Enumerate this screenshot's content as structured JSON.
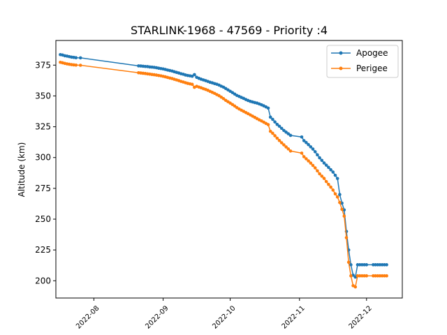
{
  "chart_data": {
    "type": "line",
    "title": "STARLINK-1968 - 47569 - Priority :4",
    "xlabel": "",
    "ylabel": "Altitude (km)",
    "xlim": [
      "2022-07-15",
      "2022-12-17"
    ],
    "ylim": [
      186,
      395
    ],
    "x_ticks": [
      "2022-08",
      "2022-09",
      "2022-10",
      "2022-11",
      "2022-12"
    ],
    "x_tick_dates": [
      "2022-08-01",
      "2022-09-01",
      "2022-10-01",
      "2022-11-01",
      "2022-12-01"
    ],
    "y_ticks": [
      200,
      225,
      250,
      275,
      300,
      325,
      350,
      375
    ],
    "legend_position": "upper right",
    "grid": false,
    "series": [
      {
        "name": "Apogee",
        "color": "#1f77b4",
        "marker": "circle",
        "x": [
          "2022-07-17",
          "2022-07-18",
          "2022-07-19",
          "2022-07-20",
          "2022-07-21",
          "2022-07-22",
          "2022-07-23",
          "2022-07-24",
          "2022-07-26",
          "2022-08-21",
          "2022-08-22",
          "2022-08-23",
          "2022-08-24",
          "2022-08-25",
          "2022-08-26",
          "2022-08-27",
          "2022-08-28",
          "2022-08-29",
          "2022-08-30",
          "2022-08-31",
          "2022-09-01",
          "2022-09-02",
          "2022-09-03",
          "2022-09-04",
          "2022-09-05",
          "2022-09-06",
          "2022-09-07",
          "2022-09-08",
          "2022-09-09",
          "2022-09-10",
          "2022-09-11",
          "2022-09-12",
          "2022-09-13",
          "2022-09-14",
          "2022-09-15",
          "2022-09-16",
          "2022-09-17",
          "2022-09-18",
          "2022-09-19",
          "2022-09-20",
          "2022-09-21",
          "2022-09-22",
          "2022-09-23",
          "2022-09-24",
          "2022-09-25",
          "2022-09-26",
          "2022-09-27",
          "2022-09-28",
          "2022-09-29",
          "2022-09-30",
          "2022-10-01",
          "2022-10-02",
          "2022-10-03",
          "2022-10-04",
          "2022-10-05",
          "2022-10-06",
          "2022-10-07",
          "2022-10-08",
          "2022-10-09",
          "2022-10-10",
          "2022-10-11",
          "2022-10-12",
          "2022-10-13",
          "2022-10-14",
          "2022-10-15",
          "2022-10-16",
          "2022-10-17",
          "2022-10-18",
          "2022-10-19",
          "2022-10-20",
          "2022-10-21",
          "2022-10-22",
          "2022-10-23",
          "2022-10-24",
          "2022-10-25",
          "2022-10-26",
          "2022-10-27",
          "2022-10-28",
          "2022-11-02",
          "2022-11-03",
          "2022-11-04",
          "2022-11-05",
          "2022-11-06",
          "2022-11-07",
          "2022-11-08",
          "2022-11-09",
          "2022-11-10",
          "2022-11-11",
          "2022-11-12",
          "2022-11-13",
          "2022-11-14",
          "2022-11-15",
          "2022-11-16",
          "2022-11-17",
          "2022-11-18",
          "2022-11-19",
          "2022-11-20",
          "2022-11-21",
          "2022-11-22",
          "2022-11-23",
          "2022-11-24",
          "2022-11-25",
          "2022-11-26",
          "2022-11-27",
          "2022-11-28",
          "2022-11-29",
          "2022-11-30",
          "2022-12-01",
          "2022-12-04",
          "2022-12-05",
          "2022-12-06",
          "2022-12-07",
          "2022-12-08",
          "2022-12-09",
          "2022-12-10",
          "2022-12-10"
        ],
        "y": [
          383.5,
          383.2,
          382.6,
          382.3,
          381.9,
          381.5,
          381.3,
          381.0,
          380.9,
          374.4,
          374.3,
          374.1,
          373.9,
          373.8,
          373.5,
          373.4,
          373.2,
          372.9,
          372.5,
          372.2,
          371.9,
          371.5,
          371.0,
          370.6,
          370.2,
          369.6,
          369.1,
          368.6,
          368.0,
          367.6,
          367.0,
          366.6,
          366.3,
          366.0,
          367.3,
          365.1,
          364.3,
          363.6,
          363.0,
          362.4,
          361.8,
          361.1,
          360.6,
          360.0,
          359.5,
          358.8,
          357.9,
          357.1,
          356.0,
          354.9,
          353.8,
          352.7,
          351.5,
          350.4,
          349.6,
          348.8,
          348.0,
          347.1,
          346.3,
          345.6,
          345.1,
          344.6,
          344.2,
          343.5,
          342.8,
          342.0,
          341.1,
          340.1,
          332.8,
          331.0,
          328.9,
          326.9,
          325.4,
          323.7,
          322.0,
          320.6,
          319.3,
          318.0,
          316.7,
          313.7,
          312.2,
          310.5,
          308.7,
          306.9,
          304.7,
          302.2,
          299.8,
          297.7,
          295.6,
          293.8,
          292.0,
          290.1,
          288.2,
          285.6,
          283.0,
          270.0,
          263.0,
          257.5,
          240.0,
          225.0,
          213.0,
          204.5,
          203.0,
          213.0,
          213.0,
          213.0,
          213.0,
          213.0,
          213.0,
          213.0,
          213.0,
          213.0,
          213.0,
          213.0,
          213.0,
          213.0
        ]
      },
      {
        "name": "Perigee",
        "color": "#ff7f0e",
        "marker": "circle",
        "x": [
          "2022-07-17",
          "2022-07-18",
          "2022-07-19",
          "2022-07-20",
          "2022-07-21",
          "2022-07-22",
          "2022-07-23",
          "2022-07-24",
          "2022-07-26",
          "2022-08-21",
          "2022-08-22",
          "2022-08-23",
          "2022-08-24",
          "2022-08-25",
          "2022-08-26",
          "2022-08-27",
          "2022-08-28",
          "2022-08-29",
          "2022-08-30",
          "2022-08-31",
          "2022-09-01",
          "2022-09-02",
          "2022-09-03",
          "2022-09-04",
          "2022-09-05",
          "2022-09-06",
          "2022-09-07",
          "2022-09-08",
          "2022-09-09",
          "2022-09-10",
          "2022-09-11",
          "2022-09-12",
          "2022-09-13",
          "2022-09-14",
          "2022-09-15",
          "2022-09-16",
          "2022-09-17",
          "2022-09-18",
          "2022-09-19",
          "2022-09-20",
          "2022-09-21",
          "2022-09-22",
          "2022-09-23",
          "2022-09-24",
          "2022-09-25",
          "2022-09-26",
          "2022-09-27",
          "2022-09-28",
          "2022-09-29",
          "2022-09-30",
          "2022-10-01",
          "2022-10-02",
          "2022-10-03",
          "2022-10-04",
          "2022-10-05",
          "2022-10-06",
          "2022-10-07",
          "2022-10-08",
          "2022-10-09",
          "2022-10-10",
          "2022-10-11",
          "2022-10-12",
          "2022-10-13",
          "2022-10-14",
          "2022-10-15",
          "2022-10-16",
          "2022-10-17",
          "2022-10-18",
          "2022-10-19",
          "2022-10-20",
          "2022-10-21",
          "2022-10-22",
          "2022-10-23",
          "2022-10-24",
          "2022-10-25",
          "2022-10-26",
          "2022-10-27",
          "2022-10-28",
          "2022-11-02",
          "2022-11-03",
          "2022-11-04",
          "2022-11-05",
          "2022-11-06",
          "2022-11-07",
          "2022-11-08",
          "2022-11-09",
          "2022-11-10",
          "2022-11-11",
          "2022-11-12",
          "2022-11-13",
          "2022-11-14",
          "2022-11-15",
          "2022-11-16",
          "2022-11-17",
          "2022-11-18",
          "2022-11-19",
          "2022-11-20",
          "2022-11-21",
          "2022-11-22",
          "2022-11-23",
          "2022-11-24",
          "2022-11-25",
          "2022-11-26",
          "2022-11-27",
          "2022-11-28",
          "2022-11-29",
          "2022-11-30",
          "2022-12-01",
          "2022-12-04",
          "2022-12-05",
          "2022-12-06",
          "2022-12-07",
          "2022-12-08",
          "2022-12-09",
          "2022-12-10",
          "2022-12-10"
        ],
        "y": [
          377.3,
          376.9,
          376.4,
          376.0,
          375.7,
          375.4,
          375.2,
          375.0,
          374.9,
          368.8,
          368.6,
          368.4,
          368.2,
          367.9,
          367.7,
          367.4,
          367.2,
          366.9,
          366.6,
          366.3,
          365.9,
          365.5,
          365.0,
          364.5,
          364.1,
          363.5,
          363.0,
          362.4,
          361.8,
          361.3,
          360.7,
          360.2,
          359.8,
          359.4,
          357.0,
          357.8,
          357.2,
          356.6,
          355.9,
          355.3,
          354.6,
          353.7,
          352.9,
          352.1,
          351.1,
          350.2,
          349.0,
          347.8,
          346.4,
          345.3,
          344.2,
          343.0,
          341.8,
          340.5,
          339.4,
          338.4,
          337.5,
          336.5,
          335.6,
          334.6,
          333.6,
          332.6,
          331.6,
          330.6,
          329.7,
          328.7,
          327.7,
          326.7,
          321.3,
          319.7,
          317.7,
          315.7,
          313.8,
          312.0,
          310.3,
          308.6,
          307.0,
          305.3,
          303.6,
          300.7,
          299.0,
          297.3,
          295.5,
          293.6,
          291.6,
          289.2,
          286.8,
          284.9,
          283.1,
          280.5,
          278.2,
          276.0,
          273.6,
          270.5,
          268.0,
          263.5,
          258.0,
          252.5,
          235.0,
          215.0,
          204.0,
          196.0,
          195.0,
          204.0,
          204.0,
          204.0,
          204.0,
          204.0,
          204.0,
          204.0,
          204.0,
          204.0,
          204.0,
          204.0,
          204.0,
          204.0
        ]
      }
    ]
  }
}
